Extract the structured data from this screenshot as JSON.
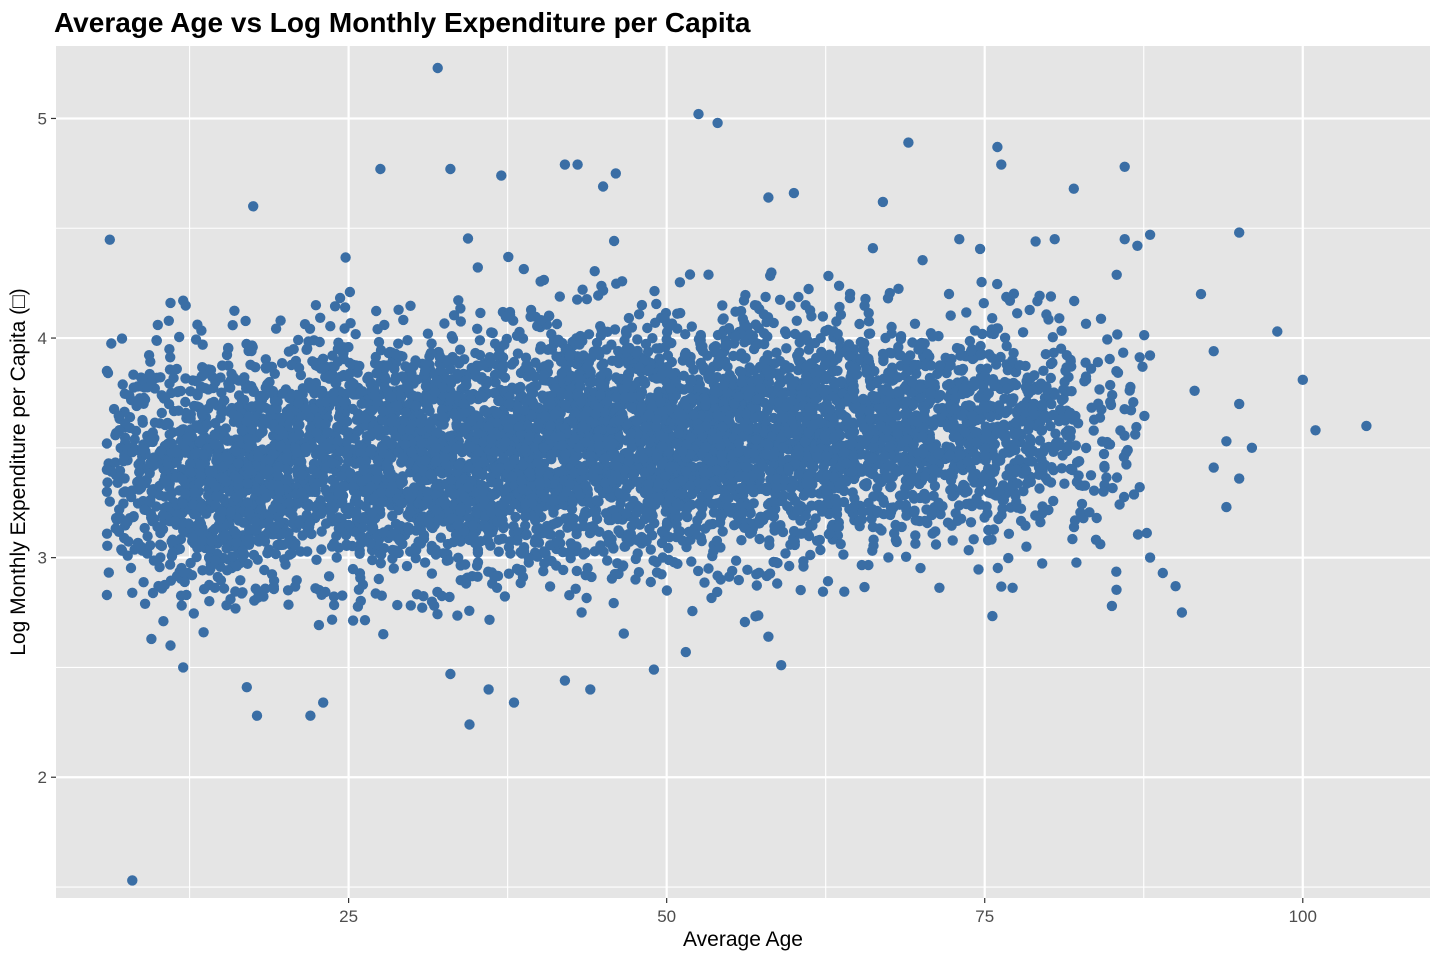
{
  "chart_data": {
    "type": "scatter",
    "title": "Average Age vs Log Monthly Expenditure per Capita",
    "xlabel": "Average Age",
    "ylabel": "Log Monthly Expenditure per Capita (□)",
    "xlim": [
      2,
      110
    ],
    "ylim": [
      1.45,
      5.33
    ],
    "x_ticks": [
      25,
      50,
      75,
      100
    ],
    "y_ticks": [
      2,
      3,
      4,
      5
    ],
    "x_tick_labels": [
      "25",
      "50",
      "75",
      "100"
    ],
    "y_tick_labels": [
      "2",
      "3",
      "4",
      "5"
    ],
    "point_color": "#3A6EA5",
    "panel_background": "#E5E5E5",
    "grid": true,
    "legend": "none",
    "series": [
      {
        "points": [
          {
            "x": 32.0,
            "y": 5.23
          },
          {
            "x": 52.5,
            "y": 5.02
          },
          {
            "x": 54.0,
            "y": 4.98
          },
          {
            "x": 69.0,
            "y": 4.89
          },
          {
            "x": 76.0,
            "y": 4.87
          },
          {
            "x": 76.3,
            "y": 4.79
          },
          {
            "x": 86.0,
            "y": 4.78
          },
          {
            "x": 82.0,
            "y": 4.68
          },
          {
            "x": 95.0,
            "y": 4.48
          },
          {
            "x": 92.0,
            "y": 4.2
          },
          {
            "x": 98.0,
            "y": 4.03
          },
          {
            "x": 93.0,
            "y": 3.94
          },
          {
            "x": 100.0,
            "y": 3.81
          },
          {
            "x": 91.5,
            "y": 3.76
          },
          {
            "x": 95.0,
            "y": 3.7
          },
          {
            "x": 105.0,
            "y": 3.6
          },
          {
            "x": 101.0,
            "y": 3.58
          },
          {
            "x": 94.0,
            "y": 3.53
          },
          {
            "x": 96.0,
            "y": 3.5
          },
          {
            "x": 93.0,
            "y": 3.41
          },
          {
            "x": 95.0,
            "y": 3.36
          },
          {
            "x": 94.0,
            "y": 3.23
          },
          {
            "x": 89.0,
            "y": 2.93
          },
          {
            "x": 90.0,
            "y": 2.87
          },
          {
            "x": 90.5,
            "y": 2.75
          },
          {
            "x": 85.0,
            "y": 2.78
          },
          {
            "x": 88.0,
            "y": 3.0
          },
          {
            "x": 6.0,
            "y": 3.85
          },
          {
            "x": 6.0,
            "y": 3.52
          },
          {
            "x": 6.0,
            "y": 3.4
          },
          {
            "x": 6.0,
            "y": 3.3
          },
          {
            "x": 6.0,
            "y": 2.83
          },
          {
            "x": 8.0,
            "y": 2.84
          },
          {
            "x": 9.0,
            "y": 2.79
          },
          {
            "x": 9.5,
            "y": 2.63
          },
          {
            "x": 11.0,
            "y": 2.6
          },
          {
            "x": 12.0,
            "y": 2.5
          },
          {
            "x": 8.0,
            "y": 1.53
          },
          {
            "x": 17.0,
            "y": 2.41
          },
          {
            "x": 17.8,
            "y": 2.28
          },
          {
            "x": 22.0,
            "y": 2.28
          },
          {
            "x": 23.0,
            "y": 2.34
          },
          {
            "x": 34.5,
            "y": 2.24
          },
          {
            "x": 36.0,
            "y": 2.4
          },
          {
            "x": 38.0,
            "y": 2.34
          },
          {
            "x": 33.0,
            "y": 2.47
          },
          {
            "x": 42.0,
            "y": 2.44
          },
          {
            "x": 44.0,
            "y": 2.4
          },
          {
            "x": 49.0,
            "y": 2.49
          },
          {
            "x": 51.5,
            "y": 2.57
          },
          {
            "x": 59.0,
            "y": 2.51
          },
          {
            "x": 58.0,
            "y": 2.64
          },
          {
            "x": 17.5,
            "y": 4.6
          },
          {
            "x": 27.5,
            "y": 4.77
          },
          {
            "x": 33.0,
            "y": 4.77
          },
          {
            "x": 37.0,
            "y": 4.74
          },
          {
            "x": 42.0,
            "y": 4.79
          },
          {
            "x": 43.0,
            "y": 4.79
          },
          {
            "x": 46.0,
            "y": 4.75
          },
          {
            "x": 45.0,
            "y": 4.69
          },
          {
            "x": 58.0,
            "y": 4.64
          },
          {
            "x": 60.0,
            "y": 4.66
          },
          {
            "x": 67.0,
            "y": 4.62
          },
          {
            "x": 73.0,
            "y": 4.45
          },
          {
            "x": 79.0,
            "y": 4.44
          },
          {
            "x": 80.5,
            "y": 4.45
          },
          {
            "x": 88.0,
            "y": 4.47
          },
          {
            "x": 86.0,
            "y": 4.45
          },
          {
            "x": 87.0,
            "y": 4.42
          },
          {
            "x": 10.0,
            "y": 4.06
          },
          {
            "x": 11.0,
            "y": 4.16
          },
          {
            "x": 12.0,
            "y": 4.17
          },
          {
            "x": 9.0,
            "y": 3.72
          },
          {
            "x": 8.0,
            "y": 3.48
          }
        ]
      }
    ],
    "dense_regions": [
      {
        "x_center": 30.0,
        "x_sd": 12.0,
        "y_center": 3.45,
        "y_sd": 0.28,
        "count": 2600
      },
      {
        "x_center": 50.0,
        "x_sd": 10.0,
        "y_center": 3.55,
        "y_sd": 0.27,
        "count": 1900
      },
      {
        "x_center": 65.0,
        "x_sd": 8.0,
        "y_center": 3.58,
        "y_sd": 0.25,
        "count": 1100
      },
      {
        "x_center": 78.0,
        "x_sd": 5.0,
        "y_center": 3.58,
        "y_sd": 0.26,
        "count": 420
      },
      {
        "x_center": 14.0,
        "x_sd": 4.0,
        "y_center": 3.35,
        "y_sd": 0.25,
        "count": 600
      }
    ]
  }
}
